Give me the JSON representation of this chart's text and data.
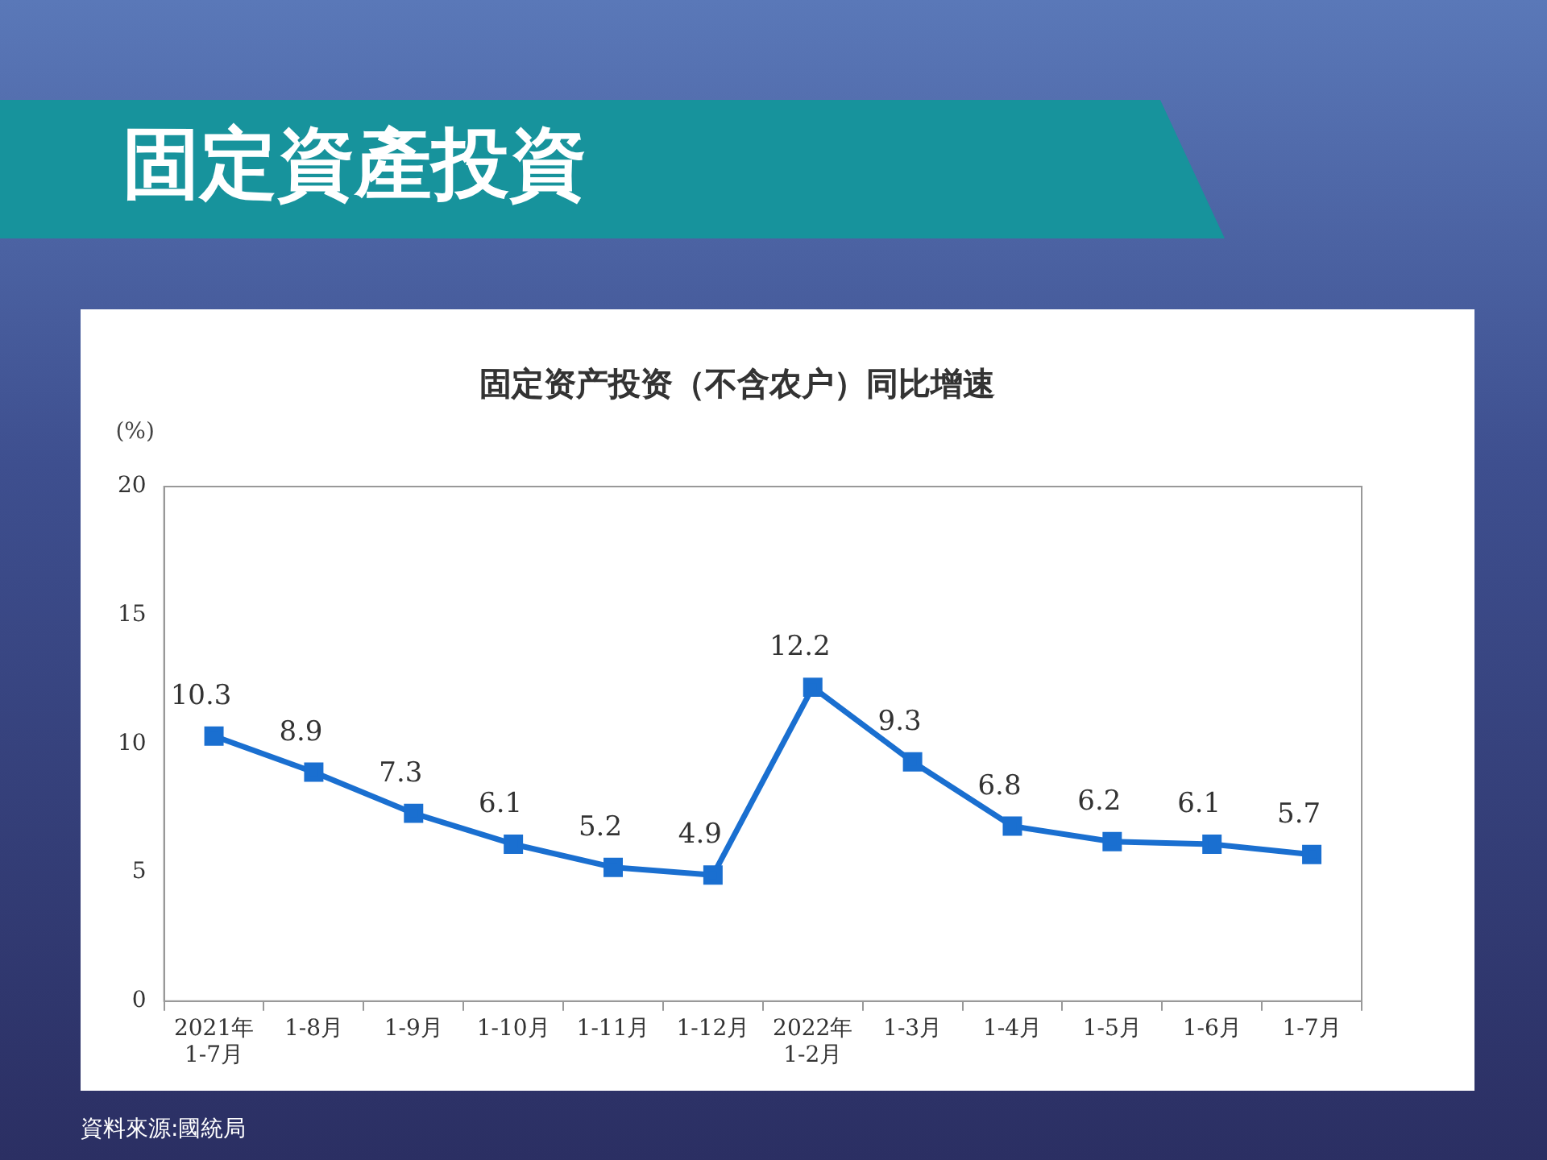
{
  "chart_data": {
    "type": "line",
    "title": "固定資產投資",
    "subtitle": "固定资产投资（不含农户）同比增速",
    "ylabel": "(%)",
    "categories": [
      "2021年\n1-7月",
      "1-8月",
      "1-9月",
      "1-10月",
      "1-11月",
      "1-12月",
      "2022年\n1-2月",
      "1-3月",
      "1-4月",
      "1-5月",
      "1-6月",
      "1-7月"
    ],
    "series": [
      {
        "color": "#1a6fd0",
        "values": [
          10.3,
          8.9,
          7.3,
          6.1,
          5.2,
          4.9,
          12.2,
          9.3,
          6.8,
          6.2,
          6.1,
          5.7
        ]
      }
    ],
    "ylim": [
      0,
      20
    ],
    "yticks": [
      0,
      5,
      10,
      15,
      20
    ],
    "grid": false,
    "legend": false,
    "marker": "square",
    "line_style": "solid",
    "data_labels": true,
    "annotations": [
      "資料來源:國統局"
    ]
  }
}
